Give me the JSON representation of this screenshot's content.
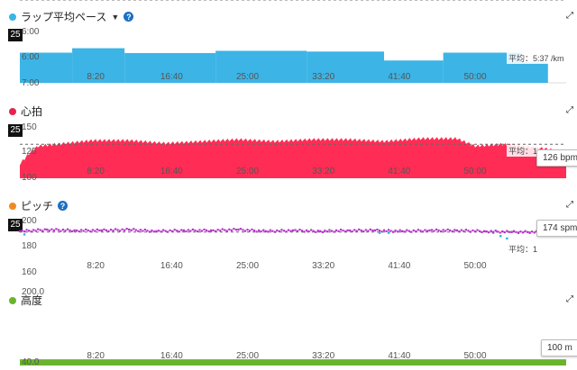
{
  "panels": {
    "pace": {
      "title": "ラップ平均ペース",
      "dot_color": "#3cb4e6",
      "caret": "▼",
      "help": "?",
      "badge": "25",
      "avg_label": "平均：5:37 /km",
      "expand_icon": "expand-icon"
    },
    "hr": {
      "title": "心拍",
      "dot_color": "#e6224e",
      "badge": "25",
      "avg_label": "平均：1",
      "tooltip": "126 bpm",
      "expand_icon": "expand-icon"
    },
    "cad": {
      "title": "ピッチ",
      "dot_color": "#f08a24",
      "help": "?",
      "badge": "25",
      "avg_label": "平均：1",
      "tooltip": "174 spm",
      "expand_icon": "expand-icon"
    },
    "elev": {
      "title": "高度",
      "dot_color": "#6ab42d",
      "tooltip": "100 m",
      "expand_icon": "expand-icon"
    }
  },
  "chart_data": [
    {
      "type": "area",
      "title": "ラップ平均ペース",
      "x_tick_labels": [
        "8:20",
        "16:40",
        "25:00",
        "33:20",
        "41:40",
        "50:00"
      ],
      "y_tick_labels": [
        "6:00",
        "6:00",
        "7:00"
      ],
      "series": [
        {
          "color": "#3cb4e6",
          "laps": [
            {
              "start": "0:00",
              "end": "5:45",
              "pace": "5:39"
            },
            {
              "start": "5:45",
              "end": "11:30",
              "pace": "5:27"
            },
            {
              "start": "11:30",
              "end": "21:30",
              "pace": "5:40"
            },
            {
              "start": "21:30",
              "end": "31:30",
              "pace": "5:34"
            },
            {
              "start": "31:30",
              "end": "40:00",
              "pace": "5:36"
            },
            {
              "start": "40:00",
              "end": "46:30",
              "pace": "6:00"
            },
            {
              "start": "46:30",
              "end": "55:00",
              "pace": "5:39"
            },
            {
              "start": "55:00",
              "end": "58:00",
              "pace": "6:05"
            }
          ]
        }
      ],
      "average": "5:37 /km",
      "color": "#3cb4e6"
    },
    {
      "type": "area",
      "title": "心拍",
      "x_tick_labels": [
        "8:20",
        "16:40",
        "25:00",
        "33:20",
        "41:40",
        "50:00"
      ],
      "y_tick_labels": [
        "150",
        "125",
        "100"
      ],
      "ylim": [
        100,
        160
      ],
      "series": [
        {
          "color": "#ff2d55",
          "x_min": [
            0,
            1,
            2,
            5,
            8,
            12,
            16,
            20,
            24,
            28,
            32,
            36,
            40,
            44,
            48,
            50,
            53,
            56,
            58,
            60
          ],
          "y_bpm": [
            115,
            126,
            134,
            137,
            140,
            140,
            137,
            139,
            141,
            139,
            141,
            141,
            139,
            142,
            142,
            134,
            136,
            133,
            131,
            126
          ]
        }
      ],
      "average_bpm": 136,
      "color": "#ff2d55"
    },
    {
      "type": "scatter",
      "title": "ピッチ",
      "x_tick_labels": [
        "8:20",
        "16:40",
        "25:00",
        "33:20",
        "41:40",
        "50:00"
      ],
      "y_tick_labels": [
        "200",
        "180",
        "160"
      ],
      "ylim": [
        160,
        205
      ],
      "series": [
        {
          "color": "#b633c9",
          "x_min": [
            0,
            3,
            6,
            9,
            12,
            15,
            18,
            21,
            24,
            27,
            30,
            33,
            36,
            39,
            42,
            45,
            48,
            51,
            54,
            57,
            60
          ],
          "y_spm": [
            186,
            188,
            187,
            187,
            188,
            186,
            187,
            187,
            188,
            186,
            187,
            186,
            187,
            187,
            186,
            187,
            187,
            186,
            185,
            185,
            186
          ]
        },
        {
          "color": "#2bb6e0",
          "x_min": [
            0.5,
            39.5,
            40.5,
            52,
            52.8,
            53.5
          ],
          "y_spm": [
            182,
            184,
            184,
            184,
            180,
            177
          ]
        }
      ],
      "average_spm": 185,
      "color": "#b633c9"
    },
    {
      "type": "area",
      "title": "高度",
      "x_tick_labels": [
        "8:20",
        "16:40",
        "25:00",
        "33:20",
        "41:40",
        "50:00"
      ],
      "y_tick_labels": [
        "200.0",
        "40.0"
      ],
      "ylim": [
        40,
        200
      ],
      "series": [
        {
          "color": "#6ab42d",
          "elevation_m": 60
        }
      ],
      "color": "#6ab42d"
    }
  ]
}
